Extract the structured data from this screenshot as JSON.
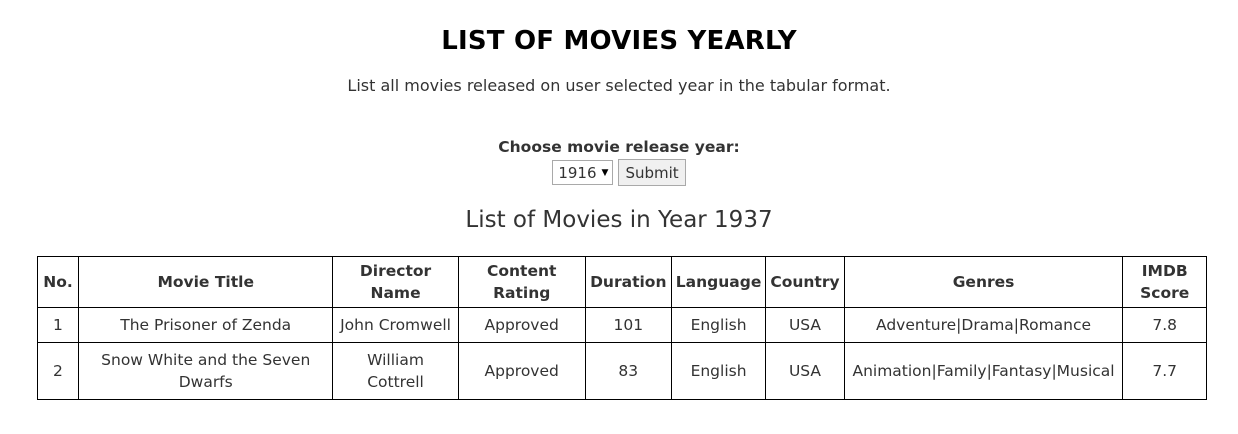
{
  "header": {
    "title": "LIST OF MOVIES YEARLY",
    "subtitle": "List all movies released on user selected year in the tabular format."
  },
  "form": {
    "label": "Choose movie release year:",
    "selected_year": "1916",
    "submit_label": "Submit"
  },
  "results": {
    "heading": "List of Movies in Year 1937",
    "columns": [
      "No.",
      "Movie Title",
      "Director Name",
      "Content Rating",
      "Duration",
      "Language",
      "Country",
      "Genres",
      "IMDB Score"
    ],
    "rows": [
      [
        "1",
        "The Prisoner of Zenda",
        "John Cromwell",
        "Approved",
        "101",
        "English",
        "USA",
        "Adventure|Drama|Romance",
        "7.8"
      ],
      [
        "2",
        "Snow White and the Seven Dwarfs",
        "William Cottrell",
        "Approved",
        "83",
        "English",
        "USA",
        "Animation|Family|Fantasy|Musical",
        "7.7"
      ]
    ]
  },
  "icons": {
    "select_caret": "caret-down-icon"
  }
}
